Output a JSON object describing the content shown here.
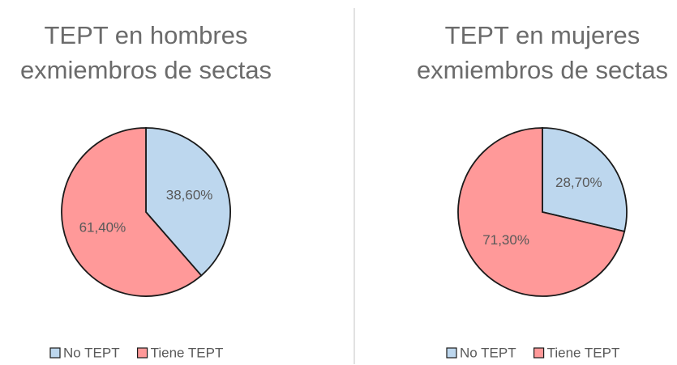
{
  "chart_data": [
    {
      "type": "pie",
      "title": "TEPT en hombres exmiembros de sectas",
      "categories": [
        "No TEPT",
        "Tiene TEPT"
      ],
      "values": [
        38.6,
        61.4
      ],
      "value_labels": [
        "38,60%",
        "61,40%"
      ],
      "colors": [
        "#bdd7ee",
        "#ff9999"
      ]
    },
    {
      "type": "pie",
      "title": "TEPT en mujeres exmiembros de sectas",
      "categories": [
        "No TEPT",
        "Tiene TEPT"
      ],
      "values": [
        28.7,
        71.3
      ],
      "value_labels": [
        "28,70%",
        "71,30%"
      ],
      "colors": [
        "#bdd7ee",
        "#ff9999"
      ]
    }
  ]
}
